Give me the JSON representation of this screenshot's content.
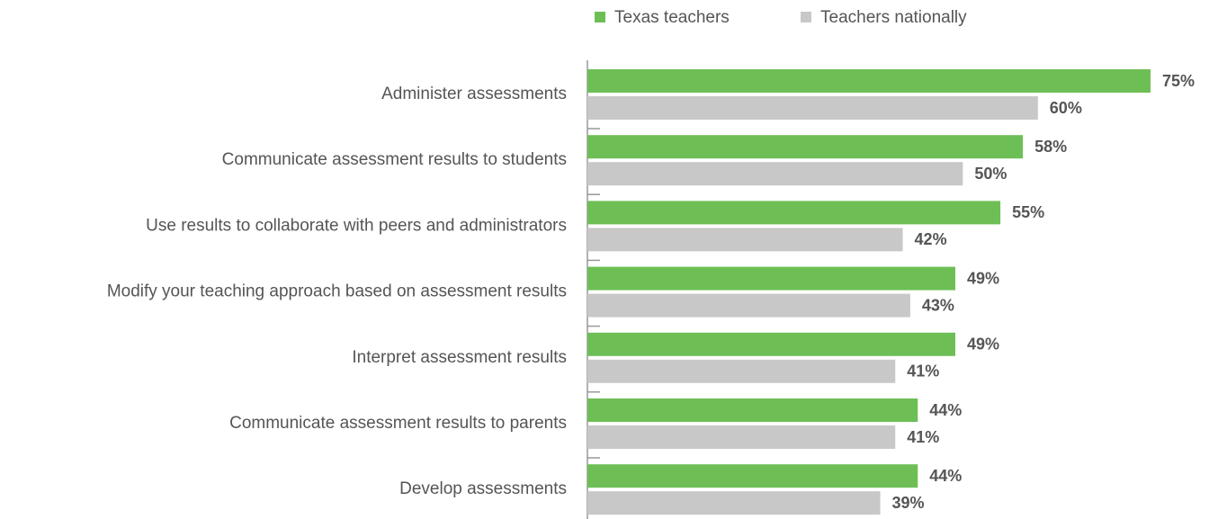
{
  "chart_data": {
    "type": "bar",
    "orientation": "horizontal",
    "categories": [
      "Administer assessments",
      "Communicate assessment results to students",
      "Use results to collaborate with peers and administrators",
      "Modify your teaching approach based on assessment results",
      "Interpret assessment results",
      "Communicate assessment results to parents",
      "Develop assessments"
    ],
    "series": [
      {
        "name": "Texas teachers",
        "color": "#6dbf55",
        "values": [
          75,
          58,
          55,
          49,
          49,
          44,
          44
        ],
        "value_labels": [
          "75%",
          "58%",
          "55%",
          "49%",
          "49%",
          "44%",
          "44%"
        ]
      },
      {
        "name": "Teachers nationally",
        "color": "#c8c8c8",
        "values": [
          60,
          50,
          42,
          43,
          41,
          41,
          39
        ],
        "value_labels": [
          "60%",
          "50%",
          "42%",
          "43%",
          "41%",
          "41%",
          "39%"
        ]
      }
    ],
    "xlim": [
      0,
      75
    ],
    "legend": "top"
  }
}
